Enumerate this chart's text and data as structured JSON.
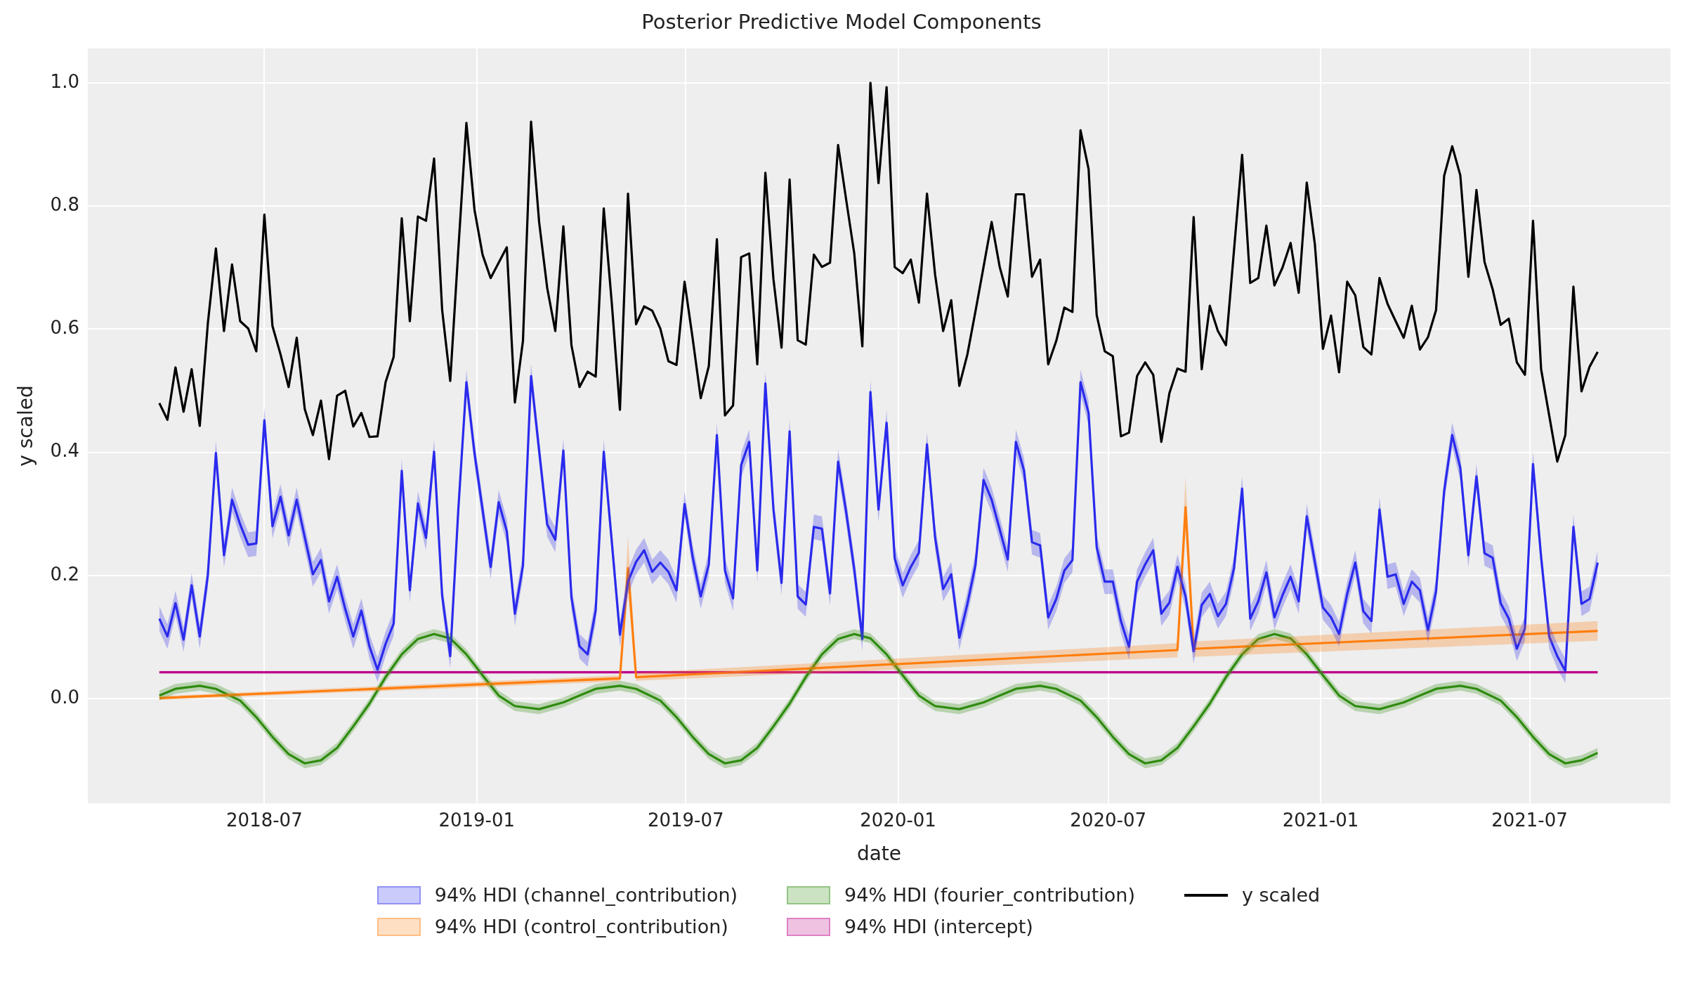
{
  "chart_data": {
    "type": "line",
    "title": "Posterior Predictive Model Components",
    "xlabel": "date",
    "ylabel": "y scaled",
    "legend": "bottom",
    "grid": true,
    "marker": "none",
    "xlim": [
      "2018-01-29",
      "2021-10-31"
    ],
    "ylim": [
      -0.17,
      1.056
    ],
    "xticks": [
      {
        "value": "2018-07-01",
        "label": "2018-07"
      },
      {
        "value": "2019-01-01",
        "label": "2019-01"
      },
      {
        "value": "2019-07-01",
        "label": "2019-07"
      },
      {
        "value": "2020-01-01",
        "label": "2020-01"
      },
      {
        "value": "2020-07-01",
        "label": "2020-07"
      },
      {
        "value": "2021-01-01",
        "label": "2021-01"
      },
      {
        "value": "2021-07-01",
        "label": "2021-07"
      }
    ],
    "yticks": [
      {
        "value": 0,
        "label": "0.0"
      },
      0.2,
      0.4,
      0.6,
      0.8,
      {
        "value": 1,
        "label": "1.0"
      }
    ],
    "x": [
      "2018-04-01",
      "2018-04-08",
      "2018-04-15",
      "2018-04-22",
      "2018-04-29",
      "2018-05-06",
      "2018-05-13",
      "2018-05-20",
      "2018-05-27",
      "2018-06-03",
      "2018-06-10",
      "2018-06-17",
      "2018-06-24",
      "2018-07-01",
      "2018-07-08",
      "2018-07-15",
      "2018-07-22",
      "2018-07-29",
      "2018-08-05",
      "2018-08-12",
      "2018-08-19",
      "2018-08-26",
      "2018-09-02",
      "2018-09-09",
      "2018-09-16",
      "2018-09-23",
      "2018-09-30",
      "2018-10-07",
      "2018-10-14",
      "2018-10-21",
      "2018-10-28",
      "2018-11-04",
      "2018-11-11",
      "2018-11-18",
      "2018-11-25",
      "2018-12-02",
      "2018-12-09",
      "2018-12-16",
      "2018-12-23",
      "2018-12-30",
      "2019-01-06",
      "2019-01-13",
      "2019-01-20",
      "2019-01-27",
      "2019-02-03",
      "2019-02-10",
      "2019-02-17",
      "2019-02-24",
      "2019-03-03",
      "2019-03-10",
      "2019-03-17",
      "2019-03-24",
      "2019-03-31",
      "2019-04-07",
      "2019-04-14",
      "2019-04-21",
      "2019-04-28",
      "2019-05-05",
      "2019-05-12",
      "2019-05-19",
      "2019-05-26",
      "2019-06-02",
      "2019-06-09",
      "2019-06-16",
      "2019-06-23",
      "2019-06-30",
      "2019-07-07",
      "2019-07-14",
      "2019-07-21",
      "2019-07-28",
      "2019-08-04",
      "2019-08-11",
      "2019-08-18",
      "2019-08-25",
      "2019-09-01",
      "2019-09-08",
      "2019-09-15",
      "2019-09-22",
      "2019-09-29",
      "2019-10-06",
      "2019-10-13",
      "2019-10-20",
      "2019-10-27",
      "2019-11-03",
      "2019-11-10",
      "2019-11-17",
      "2019-11-24",
      "2019-12-01",
      "2019-12-08",
      "2019-12-15",
      "2019-12-22",
      "2019-12-29",
      "2020-01-05",
      "2020-01-12",
      "2020-01-19",
      "2020-01-26",
      "2020-02-02",
      "2020-02-09",
      "2020-02-16",
      "2020-02-23",
      "2020-03-01",
      "2020-03-08",
      "2020-03-15",
      "2020-03-22",
      "2020-03-29",
      "2020-04-05",
      "2020-04-12",
      "2020-04-19",
      "2020-04-26",
      "2020-05-03",
      "2020-05-10",
      "2020-05-17",
      "2020-05-24",
      "2020-05-31",
      "2020-06-07",
      "2020-06-14",
      "2020-06-21",
      "2020-06-28",
      "2020-07-05",
      "2020-07-12",
      "2020-07-19",
      "2020-07-26",
      "2020-08-02",
      "2020-08-09",
      "2020-08-16",
      "2020-08-23",
      "2020-08-30",
      "2020-09-06",
      "2020-09-13",
      "2020-09-20",
      "2020-09-27",
      "2020-10-04",
      "2020-10-11",
      "2020-10-18",
      "2020-10-25",
      "2020-11-01",
      "2020-11-08",
      "2020-11-15",
      "2020-11-22",
      "2020-11-29",
      "2020-12-06",
      "2020-12-13",
      "2020-12-20",
      "2020-12-27",
      "2021-01-03",
      "2021-01-10",
      "2021-01-17",
      "2021-01-24",
      "2021-01-31",
      "2021-02-07",
      "2021-02-14",
      "2021-02-21",
      "2021-02-28",
      "2021-03-07",
      "2021-03-14",
      "2021-03-21",
      "2021-03-28",
      "2021-04-04",
      "2021-04-11",
      "2021-04-18",
      "2021-04-25",
      "2021-05-02",
      "2021-05-09",
      "2021-05-16",
      "2021-05-23",
      "2021-05-30",
      "2021-06-06",
      "2021-06-13",
      "2021-06-20",
      "2021-06-27",
      "2021-07-04",
      "2021-07-11",
      "2021-07-18",
      "2021-07-25",
      "2021-08-01",
      "2021-08-08",
      "2021-08-15",
      "2021-08-22",
      "2021-08-29"
    ],
    "series": [
      {
        "name": "94% HDI (channel_contribution)",
        "color": "#2a2aee",
        "values": [
          0.13,
          0.101,
          0.155,
          0.096,
          0.184,
          0.101,
          0.2,
          0.399,
          0.233,
          0.323,
          0.283,
          0.25,
          0.252,
          0.452,
          0.28,
          0.328,
          0.265,
          0.323,
          0.262,
          0.202,
          0.225,
          0.158,
          0.198,
          0.146,
          0.101,
          0.143,
          0.085,
          0.047,
          0.089,
          0.122,
          0.37,
          0.176,
          0.317,
          0.261,
          0.401,
          0.167,
          0.069,
          0.307,
          0.514,
          0.399,
          0.307,
          0.214,
          0.319,
          0.272,
          0.138,
          0.216,
          0.524,
          0.403,
          0.283,
          0.258,
          0.403,
          0.164,
          0.085,
          0.072,
          0.143,
          0.401,
          0.254,
          0.104,
          0.19,
          0.222,
          0.241,
          0.206,
          0.221,
          0.206,
          0.176,
          0.316,
          0.23,
          0.166,
          0.218,
          0.428,
          0.208,
          0.163,
          0.379,
          0.417,
          0.208,
          0.512,
          0.307,
          0.188,
          0.434,
          0.166,
          0.153,
          0.279,
          0.276,
          0.171,
          0.385,
          0.303,
          0.21,
          0.097,
          0.498,
          0.307,
          0.448,
          0.228,
          0.184,
          0.214,
          0.237,
          0.413,
          0.262,
          0.178,
          0.202,
          0.099,
          0.154,
          0.217,
          0.355,
          0.323,
          0.275,
          0.226,
          0.417,
          0.371,
          0.254,
          0.249,
          0.132,
          0.162,
          0.208,
          0.225,
          0.514,
          0.464,
          0.246,
          0.19,
          0.19,
          0.126,
          0.084,
          0.19,
          0.218,
          0.241,
          0.138,
          0.156,
          0.214,
          0.166,
          0.077,
          0.152,
          0.17,
          0.134,
          0.154,
          0.212,
          0.341,
          0.13,
          0.158,
          0.205,
          0.132,
          0.168,
          0.198,
          0.158,
          0.296,
          0.222,
          0.148,
          0.132,
          0.105,
          0.17,
          0.221,
          0.142,
          0.126,
          0.307,
          0.198,
          0.202,
          0.154,
          0.19,
          0.176,
          0.111,
          0.174,
          0.337,
          0.428,
          0.375,
          0.233,
          0.361,
          0.236,
          0.229,
          0.155,
          0.13,
          0.081,
          0.114,
          0.381,
          0.23,
          0.101,
          0.069,
          0.045,
          0.279,
          0.154,
          0.162,
          0.221
        ],
        "lower": [
          0.11,
          0.081,
          0.135,
          0.076,
          0.164,
          0.081,
          0.18,
          0.379,
          0.213,
          0.303,
          0.263,
          0.23,
          0.232,
          0.432,
          0.26,
          0.308,
          0.245,
          0.303,
          0.242,
          0.182,
          0.205,
          0.138,
          0.178,
          0.126,
          0.081,
          0.123,
          0.065,
          0.027,
          0.069,
          0.102,
          0.35,
          0.156,
          0.297,
          0.241,
          0.381,
          0.147,
          0.049,
          0.287,
          0.494,
          0.379,
          0.287,
          0.194,
          0.299,
          0.252,
          0.118,
          0.196,
          0.504,
          0.383,
          0.263,
          0.238,
          0.383,
          0.144,
          0.065,
          0.052,
          0.123,
          0.381,
          0.234,
          0.084,
          0.17,
          0.202,
          0.221,
          0.186,
          0.201,
          0.186,
          0.156,
          0.296,
          0.21,
          0.146,
          0.198,
          0.408,
          0.188,
          0.143,
          0.359,
          0.397,
          0.188,
          0.492,
          0.287,
          0.168,
          0.414,
          0.146,
          0.133,
          0.259,
          0.256,
          0.151,
          0.365,
          0.283,
          0.19,
          0.077,
          0.478,
          0.287,
          0.428,
          0.208,
          0.164,
          0.194,
          0.217,
          0.393,
          0.242,
          0.158,
          0.182,
          0.079,
          0.134,
          0.197,
          0.335,
          0.303,
          0.255,
          0.206,
          0.397,
          0.351,
          0.234,
          0.229,
          0.112,
          0.142,
          0.188,
          0.205,
          0.494,
          0.444,
          0.226,
          0.17,
          0.17,
          0.106,
          0.064,
          0.17,
          0.198,
          0.221,
          0.118,
          0.136,
          0.194,
          0.146,
          0.057,
          0.132,
          0.15,
          0.114,
          0.134,
          0.192,
          0.321,
          0.11,
          0.138,
          0.185,
          0.112,
          0.148,
          0.178,
          0.138,
          0.276,
          0.202,
          0.128,
          0.112,
          0.085,
          0.15,
          0.201,
          0.122,
          0.106,
          0.287,
          0.178,
          0.182,
          0.134,
          0.17,
          0.156,
          0.091,
          0.154,
          0.317,
          0.408,
          0.355,
          0.213,
          0.341,
          0.216,
          0.209,
          0.135,
          0.11,
          0.061,
          0.094,
          0.361,
          0.21,
          0.081,
          0.049,
          0.025,
          0.259,
          0.134,
          0.142,
          0.201
        ],
        "upper": [
          0.15,
          0.121,
          0.175,
          0.116,
          0.204,
          0.121,
          0.22,
          0.419,
          0.253,
          0.343,
          0.303,
          0.27,
          0.272,
          0.472,
          0.3,
          0.348,
          0.285,
          0.343,
          0.282,
          0.222,
          0.245,
          0.178,
          0.218,
          0.166,
          0.121,
          0.163,
          0.105,
          0.067,
          0.109,
          0.142,
          0.39,
          0.196,
          0.337,
          0.281,
          0.421,
          0.187,
          0.089,
          0.327,
          0.534,
          0.419,
          0.327,
          0.234,
          0.339,
          0.292,
          0.158,
          0.236,
          0.544,
          0.423,
          0.303,
          0.278,
          0.423,
          0.184,
          0.105,
          0.092,
          0.163,
          0.421,
          0.274,
          0.124,
          0.21,
          0.242,
          0.261,
          0.226,
          0.241,
          0.226,
          0.196,
          0.336,
          0.25,
          0.186,
          0.238,
          0.448,
          0.228,
          0.183,
          0.399,
          0.437,
          0.228,
          0.532,
          0.327,
          0.208,
          0.454,
          0.186,
          0.173,
          0.299,
          0.296,
          0.191,
          0.405,
          0.323,
          0.23,
          0.117,
          0.518,
          0.327,
          0.468,
          0.248,
          0.204,
          0.234,
          0.257,
          0.433,
          0.282,
          0.198,
          0.222,
          0.119,
          0.174,
          0.237,
          0.375,
          0.343,
          0.295,
          0.246,
          0.437,
          0.391,
          0.274,
          0.269,
          0.152,
          0.182,
          0.228,
          0.245,
          0.534,
          0.484,
          0.266,
          0.21,
          0.21,
          0.146,
          0.104,
          0.21,
          0.238,
          0.261,
          0.158,
          0.176,
          0.234,
          0.186,
          0.097,
          0.172,
          0.19,
          0.154,
          0.174,
          0.232,
          0.361,
          0.15,
          0.178,
          0.225,
          0.152,
          0.188,
          0.218,
          0.178,
          0.316,
          0.242,
          0.168,
          0.152,
          0.125,
          0.19,
          0.241,
          0.162,
          0.146,
          0.327,
          0.218,
          0.222,
          0.174,
          0.21,
          0.196,
          0.131,
          0.194,
          0.357,
          0.448,
          0.395,
          0.253,
          0.381,
          0.256,
          0.249,
          0.175,
          0.15,
          0.101,
          0.134,
          0.401,
          0.25,
          0.121,
          0.089,
          0.065,
          0.299,
          0.174,
          0.182,
          0.241
        ]
      },
      {
        "name": "94% HDI (control_contribution)",
        "color": "#ff7f0e",
        "x": [
          "2018-04-01",
          "2019-05-05",
          "2019-05-12",
          "2019-05-19",
          "2020-08-30",
          "2020-09-06",
          "2020-09-13",
          "2021-08-29"
        ],
        "values": [
          0.001,
          0.033,
          0.212,
          0.035,
          0.079,
          0.311,
          0.081,
          0.11
        ],
        "lower": [
          -0.002,
          0.028,
          0.17,
          0.029,
          0.067,
          0.27,
          0.068,
          0.094
        ],
        "upper": [
          0.004,
          0.038,
          0.265,
          0.042,
          0.09,
          0.361,
          0.093,
          0.126
        ]
      },
      {
        "name": "94% HDI (fourier_contribution)",
        "color": "#2e8b0e",
        "x": [
          "2018-04-01",
          "2018-04-15",
          "2018-05-06",
          "2018-05-20",
          "2018-06-10",
          "2018-06-24",
          "2018-07-08",
          "2018-07-22",
          "2018-08-05",
          "2018-08-19",
          "2018-09-02",
          "2018-09-16",
          "2018-09-30",
          "2018-10-14",
          "2018-10-28",
          "2018-11-11",
          "2018-11-25",
          "2018-12-09",
          "2018-12-23",
          "2019-01-06",
          "2019-01-20",
          "2019-02-03",
          "2019-02-24",
          "2019-03-17",
          "2019-03-31",
          "2019-04-14",
          "2019-05-05",
          "2019-05-19",
          "2019-06-09",
          "2019-06-23",
          "2019-07-07",
          "2019-07-21",
          "2019-08-04",
          "2019-08-18",
          "2019-09-01",
          "2019-09-15",
          "2019-09-29",
          "2019-10-13",
          "2019-10-27",
          "2019-11-10",
          "2019-11-24",
          "2019-12-08",
          "2019-12-22",
          "2020-01-05",
          "2020-01-19",
          "2020-02-02",
          "2020-02-23",
          "2020-03-15",
          "2020-03-29",
          "2020-04-12",
          "2020-05-03",
          "2020-05-17",
          "2020-06-07",
          "2020-06-21",
          "2020-07-05",
          "2020-07-19",
          "2020-08-02",
          "2020-08-16",
          "2020-08-30",
          "2020-09-13",
          "2020-09-27",
          "2020-10-11",
          "2020-10-25",
          "2020-11-08",
          "2020-11-22",
          "2020-12-06",
          "2020-12-20",
          "2021-01-03",
          "2021-01-17",
          "2021-01-31",
          "2021-02-21",
          "2021-03-14",
          "2021-03-28",
          "2021-04-11",
          "2021-05-02",
          "2021-05-16",
          "2021-06-06",
          "2021-06-20",
          "2021-07-04",
          "2021-07-18",
          "2021-08-01",
          "2021-08-15",
          "2021-08-29"
        ],
        "values": [
          0.005,
          0.016,
          0.021,
          0.016,
          -0.003,
          -0.03,
          -0.062,
          -0.09,
          -0.105,
          -0.1,
          -0.08,
          -0.045,
          -0.008,
          0.035,
          0.072,
          0.097,
          0.105,
          0.098,
          0.072,
          0.038,
          0.005,
          -0.012,
          -0.017,
          -0.006,
          0.005,
          0.016,
          0.021,
          0.016,
          -0.003,
          -0.03,
          -0.062,
          -0.09,
          -0.105,
          -0.1,
          -0.08,
          -0.045,
          -0.008,
          0.035,
          0.072,
          0.097,
          0.105,
          0.098,
          0.072,
          0.038,
          0.005,
          -0.012,
          -0.017,
          -0.006,
          0.005,
          0.016,
          0.021,
          0.016,
          -0.003,
          -0.03,
          -0.062,
          -0.09,
          -0.105,
          -0.1,
          -0.08,
          -0.045,
          -0.008,
          0.035,
          0.072,
          0.097,
          0.105,
          0.098,
          0.072,
          0.038,
          0.005,
          -0.012,
          -0.017,
          -0.006,
          0.005,
          0.016,
          0.021,
          0.016,
          -0.003,
          -0.03,
          -0.062,
          -0.09,
          -0.105,
          -0.1,
          -0.088
        ],
        "lower": [
          -0.003,
          0.008,
          0.013,
          0.008,
          -0.011,
          -0.038,
          -0.07,
          -0.098,
          -0.113,
          -0.108,
          -0.088,
          -0.053,
          -0.016,
          0.027,
          0.064,
          0.089,
          0.097,
          0.09,
          0.064,
          0.03,
          -0.003,
          -0.02,
          -0.025,
          -0.014,
          -0.003,
          0.008,
          0.013,
          0.008,
          -0.011,
          -0.038,
          -0.07,
          -0.098,
          -0.113,
          -0.108,
          -0.088,
          -0.053,
          -0.016,
          0.027,
          0.064,
          0.089,
          0.097,
          0.09,
          0.064,
          0.03,
          -0.003,
          -0.02,
          -0.025,
          -0.014,
          -0.003,
          0.008,
          0.013,
          0.008,
          -0.011,
          -0.038,
          -0.07,
          -0.098,
          -0.113,
          -0.108,
          -0.088,
          -0.053,
          -0.016,
          0.027,
          0.064,
          0.089,
          0.097,
          0.09,
          0.064,
          0.03,
          -0.003,
          -0.02,
          -0.025,
          -0.014,
          -0.003,
          0.008,
          0.013,
          0.008,
          -0.011,
          -0.038,
          -0.07,
          -0.098,
          -0.113,
          -0.108,
          -0.096
        ],
        "upper": [
          0.013,
          0.024,
          0.029,
          0.024,
          0.005,
          -0.022,
          -0.054,
          -0.082,
          -0.097,
          -0.092,
          -0.072,
          -0.037,
          0.0,
          0.043,
          0.08,
          0.105,
          0.113,
          0.106,
          0.08,
          0.046,
          0.013,
          -0.004,
          -0.009,
          0.002,
          0.013,
          0.024,
          0.029,
          0.024,
          0.005,
          -0.022,
          -0.054,
          -0.082,
          -0.097,
          -0.092,
          -0.072,
          -0.037,
          0.0,
          0.043,
          0.08,
          0.105,
          0.113,
          0.106,
          0.08,
          0.046,
          0.013,
          -0.004,
          -0.009,
          0.002,
          0.013,
          0.024,
          0.029,
          0.024,
          0.005,
          -0.022,
          -0.054,
          -0.082,
          -0.097,
          -0.092,
          -0.072,
          -0.037,
          0.0,
          0.043,
          0.08,
          0.105,
          0.113,
          0.106,
          0.08,
          0.046,
          0.013,
          -0.004,
          -0.009,
          0.002,
          0.013,
          0.024,
          0.029,
          0.024,
          0.005,
          -0.022,
          -0.054,
          -0.082,
          -0.097,
          -0.092,
          -0.08
        ]
      },
      {
        "name": "94% HDI (intercept)",
        "color": "#bf0a8c",
        "x": [
          "2018-04-01",
          "2021-08-29"
        ],
        "values": [
          0.043,
          0.043
        ],
        "lower": [
          0.041,
          0.041
        ],
        "upper": [
          0.045,
          0.045
        ]
      },
      {
        "name": "y scaled",
        "color": "#000000",
        "values": [
          0.48,
          0.453,
          0.538,
          0.466,
          0.535,
          0.443,
          0.609,
          0.731,
          0.597,
          0.705,
          0.613,
          0.601,
          0.564,
          0.786,
          0.605,
          0.559,
          0.506,
          0.586,
          0.47,
          0.428,
          0.484,
          0.389,
          0.492,
          0.5,
          0.442,
          0.464,
          0.425,
          0.426,
          0.514,
          0.555,
          0.78,
          0.613,
          0.783,
          0.776,
          0.877,
          0.631,
          0.516,
          0.729,
          0.935,
          0.794,
          0.721,
          0.683,
          0.708,
          0.733,
          0.481,
          0.581,
          0.937,
          0.774,
          0.667,
          0.597,
          0.767,
          0.574,
          0.506,
          0.531,
          0.523,
          0.796,
          0.641,
          0.469,
          0.82,
          0.608,
          0.637,
          0.63,
          0.601,
          0.548,
          0.542,
          0.677,
          0.585,
          0.488,
          0.54,
          0.746,
          0.46,
          0.476,
          0.717,
          0.723,
          0.543,
          0.854,
          0.681,
          0.57,
          0.843,
          0.582,
          0.575,
          0.721,
          0.701,
          0.708,
          0.899,
          0.81,
          0.723,
          0.572,
          1.0,
          0.837,
          0.993,
          0.701,
          0.691,
          0.713,
          0.643,
          0.82,
          0.689,
          0.597,
          0.647,
          0.508,
          0.559,
          0.629,
          0.701,
          0.774,
          0.701,
          0.653,
          0.819,
          0.819,
          0.685,
          0.713,
          0.543,
          0.581,
          0.635,
          0.628,
          0.923,
          0.86,
          0.623,
          0.564,
          0.556,
          0.426,
          0.432,
          0.524,
          0.546,
          0.526,
          0.417,
          0.496,
          0.536,
          0.531,
          0.782,
          0.535,
          0.638,
          0.597,
          0.574,
          0.729,
          0.883,
          0.675,
          0.683,
          0.768,
          0.671,
          0.7,
          0.74,
          0.659,
          0.838,
          0.738,
          0.568,
          0.622,
          0.53,
          0.677,
          0.655,
          0.571,
          0.559,
          0.683,
          0.641,
          0.613,
          0.586,
          0.638,
          0.567,
          0.587,
          0.631,
          0.849,
          0.897,
          0.85,
          0.685,
          0.826,
          0.709,
          0.665,
          0.607,
          0.617,
          0.546,
          0.526,
          0.776,
          0.535,
          0.46,
          0.385,
          0.428,
          0.669,
          0.499,
          0.539,
          0.563
        ]
      }
    ]
  }
}
